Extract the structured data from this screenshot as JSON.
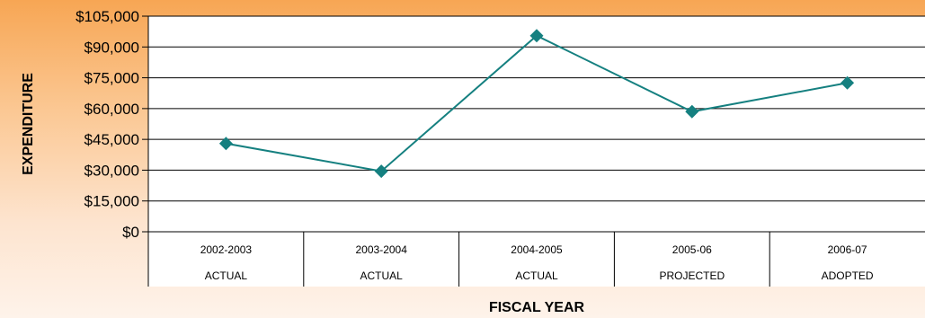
{
  "chart_data": {
    "type": "line",
    "title": "",
    "xlabel": "FISCAL YEAR",
    "ylabel": "EXPENDITURE",
    "ylim": [
      0,
      105000
    ],
    "y_ticks": [
      "$0",
      "$15,000",
      "$30,000",
      "$45,000",
      "$60,000",
      "$75,000",
      "$90,000",
      "$105,000"
    ],
    "categories": [
      {
        "year": "2002-2003",
        "status": "ACTUAL"
      },
      {
        "year": "2003-2004",
        "status": "ACTUAL"
      },
      {
        "year": "2004-2005",
        "status": "ACTUAL"
      },
      {
        "year": "2005-06",
        "status": "PROJECTED"
      },
      {
        "year": "2006-07",
        "status": "ADOPTED"
      }
    ],
    "series": [
      {
        "values": [
          43000,
          29500,
          95500,
          58500,
          72500
        ],
        "color": "#158080"
      }
    ],
    "grid": true,
    "plot_background": "#ffffff"
  }
}
